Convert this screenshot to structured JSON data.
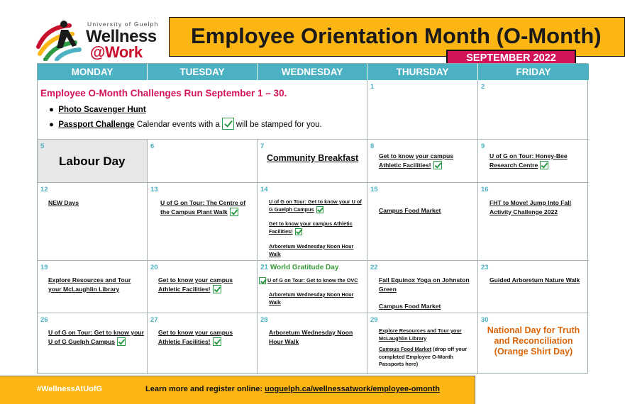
{
  "logo": {
    "university": "University of Guelph",
    "line1": "Wellness",
    "line2": "@Work"
  },
  "header": {
    "title": "Employee Orientation Month (O-Month)",
    "month": "SEPTEMBER 2022"
  },
  "days": [
    "MONDAY",
    "TUESDAY",
    "WEDNESDAY",
    "THURSDAY",
    "FRIDAY"
  ],
  "banner": {
    "title": "Employee O-Month Challenges Run September 1 – 30.",
    "item1": "Photo Scavenger Hunt",
    "item2_link": "Passport Challenge",
    "item2_text_a": " Calendar events with a",
    "item2_text_b": "will be stamped for you."
  },
  "dates": {
    "d1": "1",
    "d2": "2",
    "d5": "5",
    "d6": "6",
    "d7": "7",
    "d8": "8",
    "d9": "9",
    "d12": "12",
    "d13": "13",
    "d14": "14",
    "d15": "15",
    "d16": "16",
    "d19": "19",
    "d20": "20",
    "d21": "21",
    "d22": "22",
    "d23": "23",
    "d26": "26",
    "d27": "27",
    "d28": "28",
    "d29": "29",
    "d30": "30"
  },
  "events": {
    "labour_day": "Labour Day",
    "community_breakfast": "Community Breakfast",
    "athletic_8": "Get to know your campus Athletic Facilities!",
    "honeybee_9": "U of G on Tour: Honey-Bee Research Centre",
    "new_days_12": "NEW Days",
    "plant_walk_13": "U of G on Tour: The Centre of the Campus Plant Walk",
    "campus_14": "U of G on Tour: Get to know your U of G Guelph Campus",
    "athletic_14": "Get to know your campus Athletic Facilities!",
    "arboretum_14": "Arboretum Wednesday Noon Hour Walk",
    "food_15": "Campus Food Market",
    "fht_16": "FHT to Move! Jump Into Fall Activity Challenge 2022",
    "library_19": "Explore Resources and Tour your McLaughlin Library",
    "athletic_20": "Get to know your campus Athletic Facilities!",
    "gratitude_21": "World Gratitude Day",
    "ovc_21": "U of G on Tour: Get to know the OVC",
    "arboretum_21": "Arboretum Wednesday Noon Hour Walk",
    "yoga_22": "Fall Equinox Yoga on Johnston Green",
    "food_22": "Campus Food Market",
    "nature_23": "Guided Arboretum Nature Walk",
    "campus_26": "U of G on Tour: Get to know your U of G Guelph Campus",
    "athletic_27": "Get to know your campus Athletic Facilities!",
    "arboretum_28": "Arboretum Wednesday Noon Hour Walk",
    "library_29": "Explore Resources and Tour your McLaughlin Library",
    "food_29_link": "Campus Food Market",
    "food_29_text": " (drop off your completed Employee O-Month Passports here)",
    "truth_30": "National Day for Truth and Reconciliation (Orange Shirt Day)"
  },
  "footer": {
    "hashtag": "#WellnessAtUofG",
    "learn": "Learn more and register online: ",
    "url": "uoguelph.ca/wellnessatwork/employee-omonth"
  },
  "colors": {
    "accent_yellow": "#fcb614",
    "header_teal": "#4db1c4",
    "badge_pink": "#d4145a",
    "gratitude_green": "#3a9a3a",
    "truth_orange": "#d9660b"
  }
}
